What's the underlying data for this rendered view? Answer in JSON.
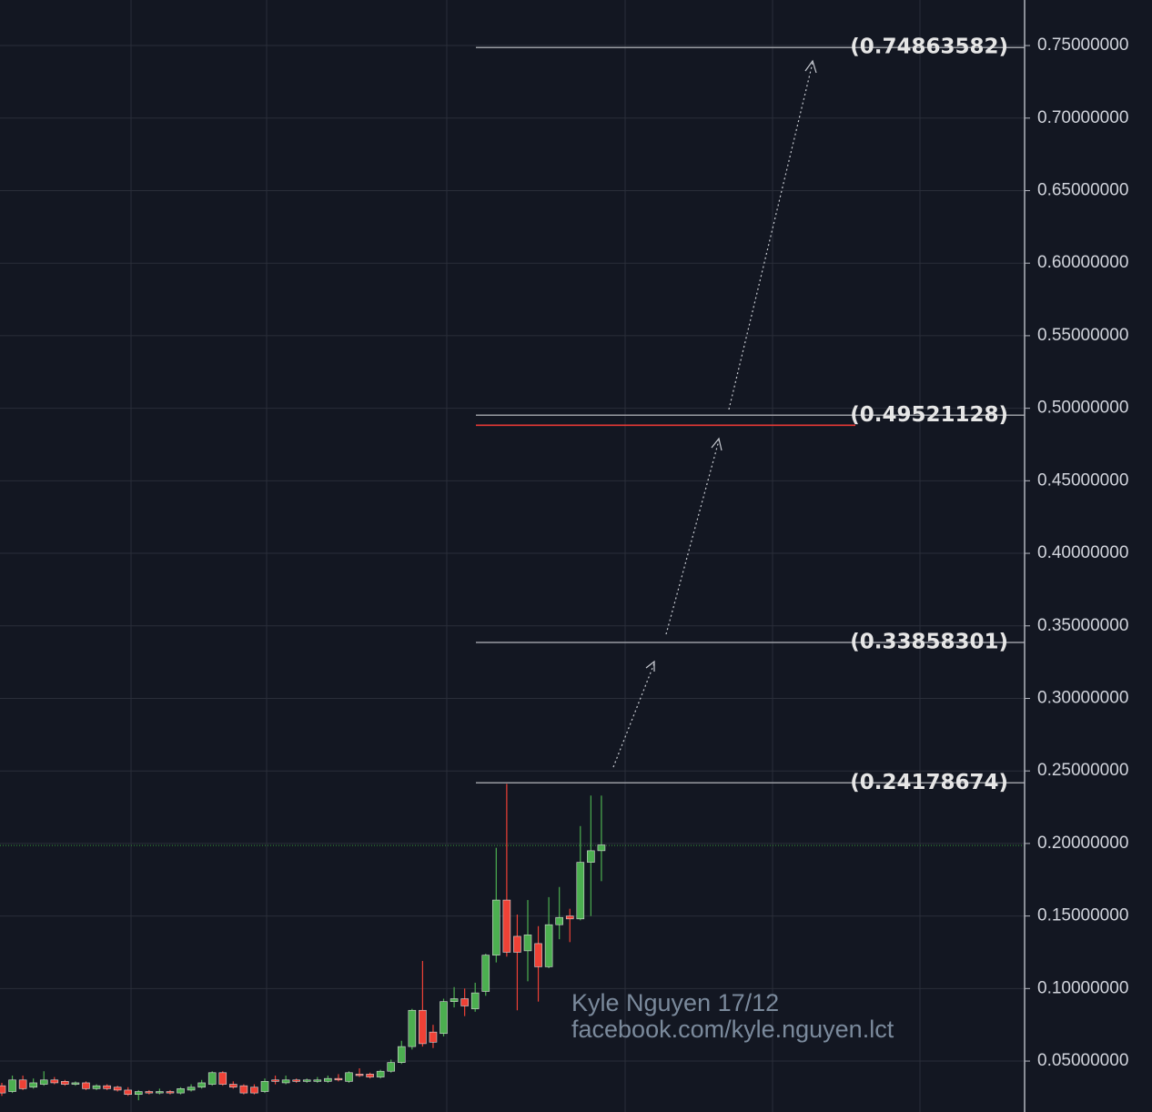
{
  "chart_data": {
    "type": "candlestick",
    "categories": [
      null,
      null,
      null,
      null,
      null,
      null,
      null,
      null,
      null,
      null,
      null,
      null,
      null,
      null,
      null,
      null,
      null,
      null,
      null,
      null,
      null,
      null,
      null,
      null,
      null,
      null,
      null,
      null,
      null,
      null,
      null,
      null,
      null,
      null,
      null,
      null,
      null,
      null,
      null,
      null,
      null,
      null,
      null,
      null,
      null,
      null,
      null,
      null,
      null,
      null,
      null,
      null,
      null,
      null,
      null,
      null,
      null,
      null
    ],
    "open": [
      0.033,
      0.029,
      0.037,
      0.032,
      0.034,
      0.037,
      0.036,
      0.034,
      0.035,
      0.031,
      0.033,
      0.032,
      0.03,
      0.027,
      0.029,
      0.028,
      0.029,
      0.028,
      0.03,
      0.032,
      0.034,
      0.042,
      0.034,
      0.033,
      0.032,
      0.029,
      0.037,
      0.035,
      0.037,
      0.036,
      0.036,
      0.036,
      0.038,
      0.036,
      0.041,
      0.041,
      0.039,
      0.043,
      0.049,
      0.06,
      0.085,
      0.07,
      0.069,
      0.091,
      0.093,
      0.086,
      0.098,
      0.123,
      0.161,
      0.136,
      0.126,
      0.131,
      0.115,
      0.144,
      0.15,
      0.148,
      0.187,
      0.195
    ],
    "high": [
      0.035,
      0.04,
      0.04,
      0.038,
      0.043,
      0.039,
      0.037,
      0.036,
      0.036,
      0.034,
      0.034,
      0.033,
      0.032,
      0.03,
      0.03,
      0.031,
      0.03,
      0.032,
      0.034,
      0.037,
      0.043,
      0.043,
      0.036,
      0.034,
      0.034,
      0.038,
      0.04,
      0.04,
      0.038,
      0.038,
      0.039,
      0.04,
      0.041,
      0.043,
      0.045,
      0.042,
      0.044,
      0.051,
      0.064,
      0.086,
      0.119,
      0.075,
      0.093,
      0.101,
      0.1,
      0.104,
      0.124,
      0.197,
      0.241,
      0.151,
      0.161,
      0.143,
      0.163,
      0.17,
      0.155,
      0.212,
      0.233,
      0.233
    ],
    "low": [
      0.026,
      0.028,
      0.03,
      0.031,
      0.033,
      0.034,
      0.033,
      0.033,
      0.03,
      0.03,
      0.03,
      0.029,
      0.026,
      0.023,
      0.027,
      0.027,
      0.027,
      0.027,
      0.029,
      0.031,
      0.033,
      0.033,
      0.031,
      0.027,
      0.027,
      0.028,
      0.034,
      0.034,
      0.035,
      0.035,
      0.035,
      0.035,
      0.036,
      0.035,
      0.039,
      0.038,
      0.038,
      0.042,
      0.048,
      0.058,
      0.06,
      0.059,
      0.067,
      0.087,
      0.081,
      0.084,
      0.095,
      0.118,
      0.122,
      0.085,
      0.105,
      0.091,
      0.114,
      0.134,
      0.132,
      0.147,
      0.15,
      0.174
    ],
    "close": [
      0.028,
      0.037,
      0.031,
      0.035,
      0.037,
      0.035,
      0.034,
      0.035,
      0.031,
      0.033,
      0.031,
      0.03,
      0.027,
      0.029,
      0.028,
      0.029,
      0.028,
      0.031,
      0.032,
      0.035,
      0.042,
      0.034,
      0.032,
      0.028,
      0.028,
      0.036,
      0.036,
      0.037,
      0.036,
      0.037,
      0.037,
      0.038,
      0.037,
      0.042,
      0.04,
      0.039,
      0.043,
      0.049,
      0.06,
      0.085,
      0.062,
      0.063,
      0.091,
      0.093,
      0.088,
      0.097,
      0.123,
      0.161,
      0.125,
      0.125,
      0.137,
      0.115,
      0.144,
      0.149,
      0.148,
      0.187,
      0.195,
      0.199
    ],
    "up_color": "#4caf50",
    "down_color": "#ef4136",
    "ylim": [
      0.0149,
      0.7814
    ],
    "yticks": [
      {
        "value": 0.05,
        "label": "0.05000000"
      },
      {
        "value": 0.1,
        "label": "0.10000000"
      },
      {
        "value": 0.15,
        "label": "0.15000000"
      },
      {
        "value": 0.2,
        "label": "0.20000000"
      },
      {
        "value": 0.25,
        "label": "0.25000000"
      },
      {
        "value": 0.3,
        "label": "0.30000000"
      },
      {
        "value": 0.35,
        "label": "0.35000000"
      },
      {
        "value": 0.4,
        "label": "0.40000000"
      },
      {
        "value": 0.45,
        "label": "0.45000000"
      },
      {
        "value": 0.5,
        "label": "0.50000000"
      },
      {
        "value": 0.55,
        "label": "0.55000000"
      },
      {
        "value": 0.6,
        "label": "0.60000000"
      },
      {
        "value": 0.65,
        "label": "0.65000000"
      },
      {
        "value": 0.7,
        "label": "0.70000000"
      },
      {
        "value": 0.75,
        "label": "0.75000000"
      }
    ],
    "grid": true,
    "levels": [
      {
        "value": 0.74863582,
        "label": "(0.74863582)"
      },
      {
        "value": 0.49521128,
        "label": "(0.49521128)"
      },
      {
        "value": 0.33858301,
        "label": "(0.33858301)"
      },
      {
        "value": 0.24178674,
        "label": "(0.24178674)"
      }
    ],
    "level_color": "#9a9ca3",
    "red_line": {
      "value": 0.4883,
      "color": "#e53935"
    },
    "last_price": {
      "value": 0.1986,
      "color": "#2e7d32"
    },
    "annotations": [
      "Kyle Nguyen 17/12",
      "facebook.com/kyle.nguyen.lct"
    ]
  }
}
